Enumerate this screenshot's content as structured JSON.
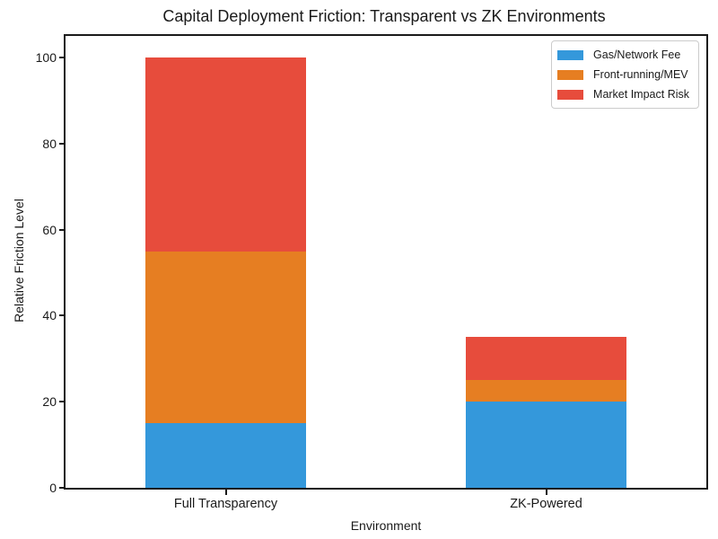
{
  "chart_data": {
    "type": "bar",
    "stacked": true,
    "title": "Capital Deployment Friction: Transparent vs ZK Environments",
    "xlabel": "Environment",
    "ylabel": "Relative Friction Level",
    "categories": [
      "Full Transparency",
      "ZK-Powered"
    ],
    "series": [
      {
        "name": "Gas/Network Fee",
        "color": "#3498db",
        "values": [
          15,
          20
        ]
      },
      {
        "name": "Front-running/MEV",
        "color": "#e67e22",
        "values": [
          40,
          5
        ]
      },
      {
        "name": "Market Impact Risk",
        "color": "#e74c3c",
        "values": [
          45,
          10
        ]
      }
    ],
    "totals": [
      100,
      35
    ],
    "ylim": [
      0,
      105
    ],
    "yticks": [
      0,
      20,
      40,
      60,
      80,
      100
    ],
    "legend_position": "upper right",
    "grid": false,
    "text_color": "#1a1a1a",
    "background_color": "#ffffff"
  }
}
